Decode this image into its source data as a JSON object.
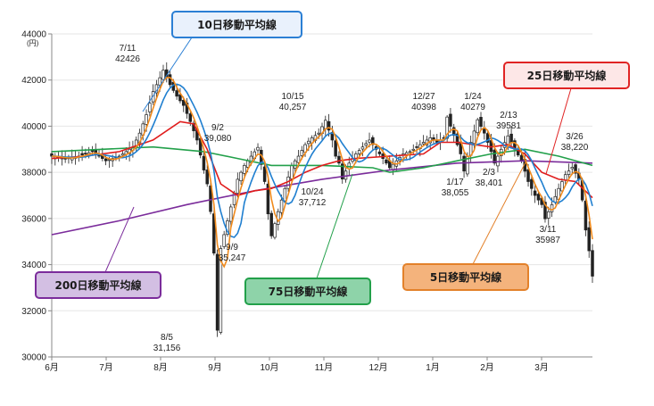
{
  "chart_data": {
    "type": "line",
    "y_unit": "(円)",
    "ylim": [
      30000,
      44000
    ],
    "y_ticks": [
      "44000",
      "42000",
      "40000",
      "38000",
      "36000",
      "34000",
      "32000",
      "30000"
    ],
    "x_ticks": [
      "6月",
      "7月",
      "8月",
      "9月",
      "10月",
      "11月",
      "12月",
      "1月",
      "2月",
      "3月"
    ],
    "annotations": [
      {
        "date": "7/11",
        "value": "42426"
      },
      {
        "date": "8/5",
        "value": "31,156"
      },
      {
        "date": "9/2",
        "value": "39,080"
      },
      {
        "date": "9/9",
        "value": "35,247"
      },
      {
        "date": "10/15",
        "value": "40,257"
      },
      {
        "date": "10/24",
        "value": "37,712"
      },
      {
        "date": "12/27",
        "value": "40398"
      },
      {
        "date": "1/17",
        "value": "38,055"
      },
      {
        "date": "1/24",
        "value": "40279"
      },
      {
        "date": "2/3",
        "value": "38,401"
      },
      {
        "date": "2/13",
        "value": "39581"
      },
      {
        "date": "3/11",
        "value": "35987"
      },
      {
        "date": "3/26",
        "value": "38,220"
      }
    ],
    "series": [
      {
        "name": "5日移動平均線",
        "color": "#f08a1c"
      },
      {
        "name": "10日移動平均線",
        "color": "#1f7fd0"
      },
      {
        "name": "25日移動平均線",
        "color": "#e01c1c"
      },
      {
        "name": "75日移動平均線",
        "color": "#22a04a"
      },
      {
        "name": "200日移動平均線",
        "color": "#7b2c9b"
      }
    ],
    "price_path": [
      [
        0,
        38700
      ],
      [
        4,
        38600
      ],
      [
        8,
        38700
      ],
      [
        12,
        38900
      ],
      [
        16,
        38500
      ],
      [
        20,
        38700
      ],
      [
        24,
        39100
      ],
      [
        26,
        39700
      ],
      [
        28,
        40500
      ],
      [
        30,
        41500
      ],
      [
        32,
        42100
      ],
      [
        33,
        42426
      ],
      [
        35,
        41800
      ],
      [
        37,
        41300
      ],
      [
        39,
        40900
      ],
      [
        41,
        40200
      ],
      [
        43,
        39400
      ],
      [
        45,
        38100
      ],
      [
        46,
        37500
      ],
      [
        47,
        36300
      ],
      [
        48,
        34500
      ],
      [
        49,
        31156
      ],
      [
        50,
        34700
      ],
      [
        51,
        35300
      ],
      [
        53,
        36500
      ],
      [
        55,
        37700
      ],
      [
        57,
        38300
      ],
      [
        59,
        38700
      ],
      [
        61,
        39080
      ],
      [
        63,
        37600
      ],
      [
        64,
        36200
      ],
      [
        65,
        35247
      ],
      [
        67,
        36300
      ],
      [
        69,
        37300
      ],
      [
        71,
        38300
      ],
      [
        73,
        38700
      ],
      [
        75,
        39200
      ],
      [
        77,
        39500
      ],
      [
        79,
        39700
      ],
      [
        81,
        40257
      ],
      [
        83,
        39400
      ],
      [
        84,
        38700
      ],
      [
        85,
        38400
      ],
      [
        86,
        37712
      ],
      [
        88,
        38400
      ],
      [
        90,
        38800
      ],
      [
        92,
        39100
      ],
      [
        94,
        39400
      ],
      [
        96,
        39000
      ],
      [
        98,
        38600
      ],
      [
        100,
        38200
      ],
      [
        102,
        38500
      ],
      [
        104,
        38800
      ],
      [
        106,
        38900
      ],
      [
        108,
        39100
      ],
      [
        110,
        39300
      ],
      [
        112,
        39500
      ],
      [
        114,
        39300
      ],
      [
        116,
        39500
      ],
      [
        117,
        40398
      ],
      [
        119,
        39600
      ],
      [
        121,
        38800
      ],
      [
        122,
        38055
      ],
      [
        124,
        39300
      ],
      [
        126,
        40279
      ],
      [
        128,
        39700
      ],
      [
        130,
        38900
      ],
      [
        131,
        38401
      ],
      [
        133,
        39000
      ],
      [
        135,
        39581
      ],
      [
        137,
        39000
      ],
      [
        139,
        38500
      ],
      [
        141,
        37600
      ],
      [
        143,
        37000
      ],
      [
        145,
        36600
      ],
      [
        146,
        35987
      ],
      [
        148,
        36600
      ],
      [
        150,
        37300
      ],
      [
        152,
        37900
      ],
      [
        154,
        38220
      ],
      [
        156,
        37700
      ],
      [
        157,
        36800
      ],
      [
        158,
        35500
      ],
      [
        159,
        34600
      ],
      [
        160,
        33500
      ]
    ],
    "ma_200": [
      [
        0,
        35300
      ],
      [
        20,
        35900
      ],
      [
        40,
        36600
      ],
      [
        60,
        37200
      ],
      [
        80,
        37700
      ],
      [
        100,
        38100
      ],
      [
        120,
        38400
      ],
      [
        140,
        38500
      ],
      [
        160,
        38400
      ]
    ],
    "ma_75": [
      [
        0,
        38900
      ],
      [
        15,
        39000
      ],
      [
        30,
        39100
      ],
      [
        45,
        38900
      ],
      [
        55,
        38600
      ],
      [
        65,
        38300
      ],
      [
        80,
        38300
      ],
      [
        95,
        38200
      ],
      [
        100,
        38000
      ],
      [
        110,
        38200
      ],
      [
        120,
        38500
      ],
      [
        130,
        38800
      ],
      [
        140,
        39000
      ],
      [
        150,
        38700
      ],
      [
        160,
        38300
      ]
    ],
    "ma_25": [
      [
        0,
        38600
      ],
      [
        10,
        38700
      ],
      [
        20,
        38900
      ],
      [
        30,
        39400
      ],
      [
        38,
        40200
      ],
      [
        42,
        40100
      ],
      [
        46,
        39000
      ],
      [
        50,
        37500
      ],
      [
        55,
        37000
      ],
      [
        60,
        37200
      ],
      [
        65,
        37300
      ],
      [
        70,
        37600
      ],
      [
        75,
        38000
      ],
      [
        80,
        38300
      ],
      [
        85,
        38500
      ],
      [
        90,
        38600
      ],
      [
        100,
        38700
      ],
      [
        110,
        38800
      ],
      [
        115,
        39300
      ],
      [
        120,
        39300
      ],
      [
        125,
        39200
      ],
      [
        130,
        39100
      ],
      [
        135,
        39200
      ],
      [
        140,
        38800
      ],
      [
        145,
        38000
      ],
      [
        150,
        37700
      ],
      [
        155,
        37600
      ],
      [
        160,
        36900
      ]
    ]
  }
}
